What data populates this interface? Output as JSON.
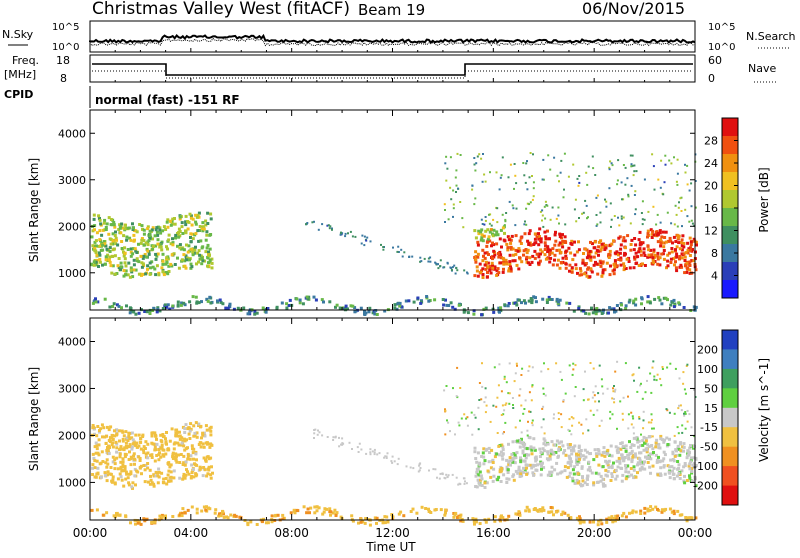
{
  "header": {
    "title": "Christmas Valley West (fitACF)",
    "beam": "Beam 19",
    "date": "06/Nov/2015"
  },
  "panel_labels": {
    "nsky": "N.Sky",
    "nsearch": "N.Search",
    "freq": "Freq.",
    "freq_unit": "[MHz]",
    "nave": "Nave",
    "cpid": "CPID",
    "cpid_text": "normal (fast) -151 RF",
    "nsky_ticks": [
      "10^5",
      "10^0"
    ],
    "nsearch_ticks": [
      "10^5",
      "10^0"
    ],
    "freq_ticks": [
      "18",
      "8"
    ],
    "nave_ticks": [
      "60",
      "0"
    ]
  },
  "x_axis": {
    "label": "Time UT",
    "ticks": [
      "00:00",
      "04:00",
      "08:00",
      "12:00",
      "16:00",
      "20:00",
      "00:00"
    ]
  },
  "chart_data": [
    {
      "type": "heatmap",
      "parameter": "Power",
      "ylabel": "Slant Range [km]",
      "xlabel": "",
      "x_range_hours": [
        0,
        24
      ],
      "ylim": [
        200,
        4500
      ],
      "y_ticks": [
        1000,
        2000,
        3000,
        4000
      ],
      "colorbar": {
        "label": "Power [dB]",
        "ticks": [
          4,
          8,
          12,
          16,
          20,
          24,
          28
        ],
        "range": [
          0,
          32
        ],
        "colors": [
          "#1a1aff",
          "#2a3fb8",
          "#3a78a0",
          "#3f8f60",
          "#68b848",
          "#b0c830",
          "#f0c020",
          "#f09010",
          "#f05010",
          "#e01010"
        ]
      },
      "regions": [
        {
          "start_hour": 0.0,
          "end_hour": 4.8,
          "range_start_km": 1000,
          "range_end_km": 2200,
          "level_db": 16
        },
        {
          "start_hour": 15.2,
          "end_hour": 24.0,
          "range_start_km": 1050,
          "range_end_km": 1850,
          "level_db": 28
        },
        {
          "start_hour": 15.2,
          "end_hour": 16.5,
          "range_start_km": 1850,
          "range_end_km": 2100,
          "level_db": 18
        },
        {
          "start_hour": 0.0,
          "end_hour": 24.0,
          "range_start_km": 250,
          "range_end_km": 400,
          "level_db": 10
        }
      ]
    },
    {
      "type": "heatmap",
      "parameter": "Velocity",
      "ylabel": "Slant Range [km]",
      "xlabel": "Time UT",
      "x_range_hours": [
        0,
        24
      ],
      "ylim": [
        200,
        4500
      ],
      "y_ticks": [
        1000,
        2000,
        3000,
        4000
      ],
      "colorbar": {
        "label": "Velocity [m s^-1]",
        "ticks": [
          "200",
          "100",
          "50",
          "15",
          "-15",
          "-50",
          "-100",
          "-200"
        ],
        "colors": [
          "#2040c0",
          "#3f7fbf",
          "#3f9f5f",
          "#5fd040",
          "#c8c8c8",
          "#f0c040",
          "#f09020",
          "#f05020",
          "#e01010"
        ]
      },
      "regions": [
        {
          "start_hour": 0.0,
          "end_hour": 4.8,
          "range_start_km": 1000,
          "range_end_km": 2200,
          "velocity": -30
        },
        {
          "start_hour": 15.2,
          "end_hour": 24.0,
          "range_start_km": 1050,
          "range_end_km": 1900,
          "velocity": 0
        },
        {
          "start_hour": 0.0,
          "end_hour": 24.0,
          "range_start_km": 250,
          "range_end_km": 400,
          "velocity": -40
        }
      ]
    }
  ]
}
